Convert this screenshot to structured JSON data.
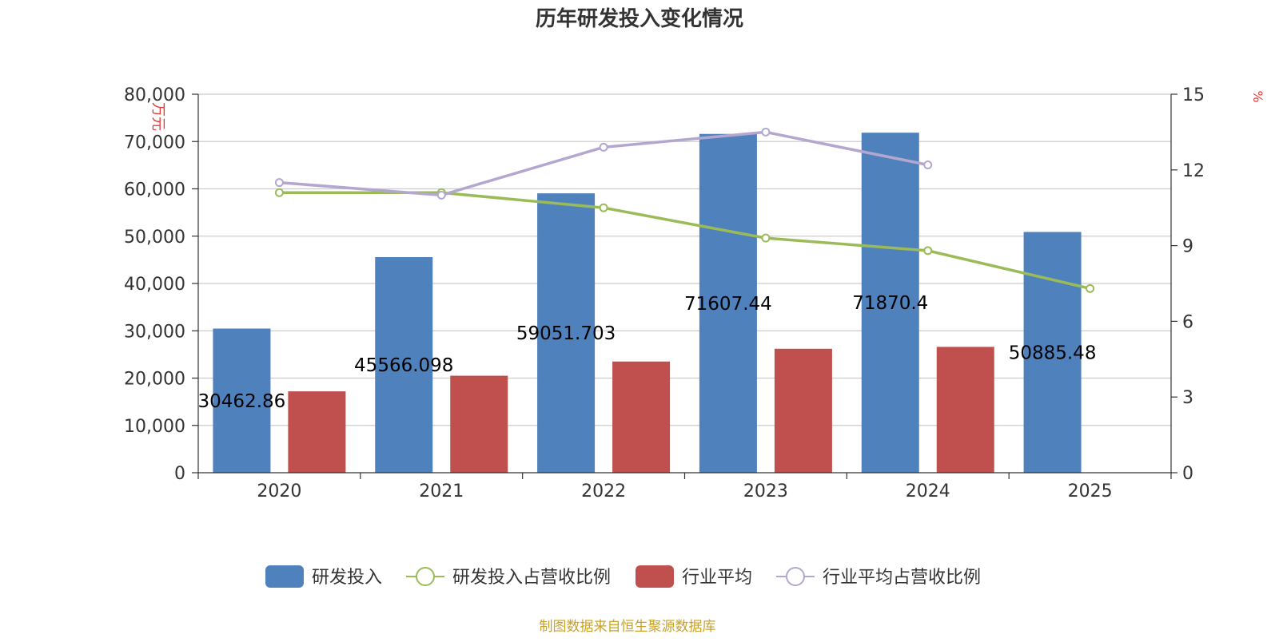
{
  "chart_data": {
    "type": "bar",
    "title": "历年研发投入变化情况",
    "categories": [
      "2020",
      "2021",
      "2022",
      "2023",
      "2024",
      "2025"
    ],
    "y_left": {
      "label": "万元",
      "min": 0,
      "max": 80000,
      "ticks": [
        "0",
        "10,000",
        "20,000",
        "30,000",
        "40,000",
        "50,000",
        "60,000",
        "70,000",
        "80,000"
      ]
    },
    "y_right": {
      "label": "%",
      "min": 0,
      "max": 15,
      "ticks": [
        "0",
        "3",
        "6",
        "9",
        "12",
        "15"
      ]
    },
    "series": [
      {
        "name": "研发投入",
        "kind": "bar",
        "axis": "left",
        "color": "#4f81bd",
        "values": [
          30462.86,
          45566.098,
          59051.703,
          71607.44,
          71870.4,
          50885.48
        ],
        "labels": [
          "30462.86",
          "45566.098",
          "59051.703",
          "71607.44",
          "71870.4",
          "50885.48"
        ]
      },
      {
        "name": "研发投入占营收比例",
        "kind": "line",
        "axis": "right",
        "color": "#9bbb59",
        "values": [
          11.1,
          11.1,
          10.5,
          9.3,
          8.8,
          7.3
        ]
      },
      {
        "name": "行业平均",
        "kind": "bar",
        "axis": "left",
        "color": "#c0504d",
        "values": [
          17200,
          20500,
          23500,
          26200,
          26600,
          null
        ]
      },
      {
        "name": "行业平均占营收比例",
        "kind": "line",
        "axis": "right",
        "color": "#b3a7d0",
        "values": [
          11.5,
          11.0,
          12.9,
          13.5,
          12.2,
          null
        ]
      }
    ],
    "legend_position": "bottom",
    "grid": true
  },
  "footer": {
    "source": "制图数据来自恒生聚源数据库"
  },
  "colors": {
    "axis": "#333333",
    "grid": "#cccccc",
    "unit_label": "#e53935",
    "source": "#c9a227"
  }
}
